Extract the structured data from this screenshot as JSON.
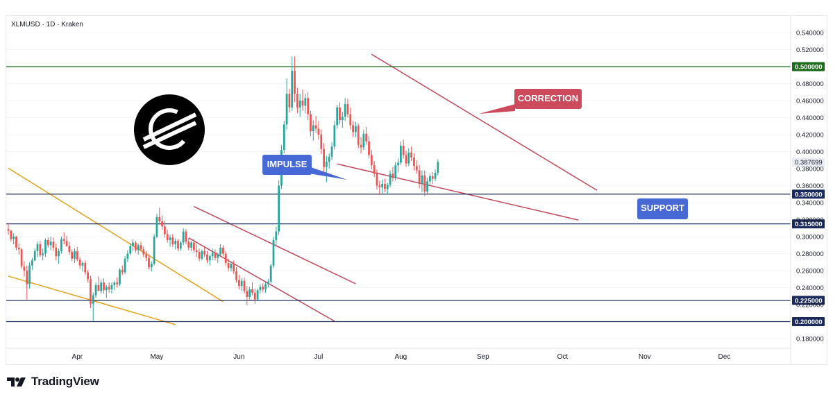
{
  "header": {
    "symbol_line": "XLMUSD · 1D · Kraken"
  },
  "brand": {
    "wordmark": "TradingView",
    "logo_icon": "tradingview-logo-icon"
  },
  "colors": {
    "up_candle": "#26a69a",
    "down_candle": "#ef5350",
    "channel_line": "#c0475a",
    "trend_line": "#e3a21b",
    "level_line": "#1b2a5c",
    "resistance_line": "#1e6b1e",
    "callout_red": "#cc4a5c",
    "callout_blue": "#4669d6"
  },
  "annotations": {
    "correction": "CORRECTION",
    "impulse": "IMPULSE",
    "support": "SUPPORT"
  },
  "chart_data": {
    "type": "candlestick",
    "title": "",
    "xlabel": "",
    "ylabel": "",
    "ylim": [
      0.17,
      0.55
    ],
    "x_tick_labels": [
      "Apr",
      "May",
      "Jun",
      "Jul",
      "Aug",
      "Sep",
      "Oct",
      "Nov",
      "Dec"
    ],
    "y_tick_labels": [
      "0.540000",
      "0.520000",
      "0.480000",
      "0.460000",
      "0.440000",
      "0.420000",
      "0.400000",
      "0.380000",
      "0.360000",
      "0.340000",
      "0.320000",
      "0.300000",
      "0.280000",
      "0.260000",
      "0.240000",
      "0.220000",
      "0.180000"
    ],
    "horizontal_levels": [
      {
        "label": "0.500000",
        "value": 0.5,
        "style": "resistance"
      },
      {
        "label": "0.350000",
        "value": 0.35,
        "style": "level"
      },
      {
        "label": "0.315000",
        "value": 0.315,
        "style": "level"
      },
      {
        "label": "0.225000",
        "value": 0.225,
        "style": "level"
      },
      {
        "label": "0.200000",
        "value": 0.2,
        "style": "level"
      }
    ],
    "last_price": {
      "label": "0.387699",
      "value": 0.3877
    },
    "trendlines": [
      {
        "name": "upper-trend-1",
        "style": "trend",
        "from": {
          "day": 0,
          "price": 0.3805
        },
        "to": {
          "day": 81,
          "price": 0.2235
        }
      },
      {
        "name": "lower-trend-1",
        "style": "trend",
        "from": {
          "day": 0,
          "price": 0.2535
        },
        "to": {
          "day": 63,
          "price": 0.1965
        }
      },
      {
        "name": "may-channel-top",
        "style": "channel",
        "from": {
          "day": 70,
          "price": 0.3355
        },
        "to": {
          "day": 131,
          "price": 0.2445
        }
      },
      {
        "name": "may-channel-bottom",
        "style": "channel",
        "from": {
          "day": 68,
          "price": 0.2985
        },
        "to": {
          "day": 123,
          "price": 0.2005
        }
      },
      {
        "name": "correction-top",
        "style": "channel",
        "from": {
          "day": 137,
          "price": 0.5145
        },
        "to": {
          "day": 222,
          "price": 0.3545
        }
      },
      {
        "name": "correction-bottom",
        "style": "channel",
        "from": {
          "day": 124,
          "price": 0.3855
        },
        "to": {
          "day": 215,
          "price": 0.3195
        }
      }
    ],
    "series": [
      {
        "name": "",
        "type": "candlestick",
        "values": [
          [
            0.309,
            0.316,
            0.302,
            0.307
          ],
          [
            0.307,
            0.308,
            0.294,
            0.297
          ],
          [
            0.297,
            0.304,
            0.291,
            0.3
          ],
          [
            0.3,
            0.301,
            0.284,
            0.287
          ],
          [
            0.287,
            0.292,
            0.279,
            0.285
          ],
          [
            0.285,
            0.287,
            0.262,
            0.265
          ],
          [
            0.265,
            0.271,
            0.253,
            0.26
          ],
          [
            0.26,
            0.266,
            0.226,
            0.244
          ],
          [
            0.244,
            0.27,
            0.239,
            0.266
          ],
          [
            0.266,
            0.275,
            0.261,
            0.272
          ],
          [
            0.272,
            0.286,
            0.271,
            0.283
          ],
          [
            0.283,
            0.294,
            0.276,
            0.291
          ],
          [
            0.291,
            0.295,
            0.276,
            0.278
          ],
          [
            0.278,
            0.286,
            0.272,
            0.28
          ],
          [
            0.28,
            0.298,
            0.276,
            0.296
          ],
          [
            0.296,
            0.299,
            0.287,
            0.29
          ],
          [
            0.29,
            0.3,
            0.284,
            0.294
          ],
          [
            0.294,
            0.299,
            0.283,
            0.287
          ],
          [
            0.287,
            0.292,
            0.272,
            0.277
          ],
          [
            0.277,
            0.286,
            0.268,
            0.283
          ],
          [
            0.283,
            0.3,
            0.28,
            0.297
          ],
          [
            0.297,
            0.305,
            0.291,
            0.295
          ],
          [
            0.295,
            0.301,
            0.288,
            0.289
          ],
          [
            0.289,
            0.294,
            0.279,
            0.282
          ],
          [
            0.282,
            0.285,
            0.271,
            0.274
          ],
          [
            0.274,
            0.286,
            0.269,
            0.283
          ],
          [
            0.283,
            0.288,
            0.271,
            0.273
          ],
          [
            0.273,
            0.276,
            0.262,
            0.266
          ],
          [
            0.266,
            0.271,
            0.259,
            0.269
          ],
          [
            0.269,
            0.272,
            0.255,
            0.258
          ],
          [
            0.258,
            0.261,
            0.246,
            0.25
          ],
          [
            0.25,
            0.254,
            0.216,
            0.221
          ],
          [
            0.221,
            0.234,
            0.201,
            0.231
          ],
          [
            0.231,
            0.246,
            0.228,
            0.243
          ],
          [
            0.243,
            0.253,
            0.239,
            0.236
          ],
          [
            0.236,
            0.249,
            0.233,
            0.246
          ],
          [
            0.246,
            0.251,
            0.233,
            0.237
          ],
          [
            0.237,
            0.243,
            0.228,
            0.241
          ],
          [
            0.241,
            0.246,
            0.234,
            0.238
          ],
          [
            0.238,
            0.246,
            0.233,
            0.243
          ],
          [
            0.243,
            0.248,
            0.237,
            0.246
          ],
          [
            0.246,
            0.252,
            0.24,
            0.244
          ],
          [
            0.244,
            0.263,
            0.242,
            0.261
          ],
          [
            0.261,
            0.266,
            0.255,
            0.258
          ],
          [
            0.258,
            0.277,
            0.256,
            0.274
          ],
          [
            0.274,
            0.284,
            0.27,
            0.28
          ],
          [
            0.28,
            0.292,
            0.278,
            0.289
          ],
          [
            0.289,
            0.297,
            0.283,
            0.293
          ],
          [
            0.293,
            0.295,
            0.281,
            0.284
          ],
          [
            0.284,
            0.292,
            0.279,
            0.29
          ],
          [
            0.29,
            0.294,
            0.283,
            0.285
          ],
          [
            0.285,
            0.288,
            0.276,
            0.279
          ],
          [
            0.279,
            0.283,
            0.271,
            0.275
          ],
          [
            0.275,
            0.279,
            0.261,
            0.264
          ],
          [
            0.264,
            0.271,
            0.259,
            0.268
          ],
          [
            0.268,
            0.303,
            0.266,
            0.3
          ],
          [
            0.3,
            0.327,
            0.298,
            0.323
          ],
          [
            0.323,
            0.334,
            0.314,
            0.318
          ],
          [
            0.318,
            0.325,
            0.308,
            0.312
          ],
          [
            0.312,
            0.319,
            0.299,
            0.303
          ],
          [
            0.303,
            0.308,
            0.293,
            0.296
          ],
          [
            0.296,
            0.302,
            0.288,
            0.299
          ],
          [
            0.299,
            0.303,
            0.288,
            0.291
          ],
          [
            0.291,
            0.298,
            0.285,
            0.295
          ],
          [
            0.295,
            0.297,
            0.283,
            0.286
          ],
          [
            0.286,
            0.295,
            0.283,
            0.293
          ],
          [
            0.293,
            0.31,
            0.29,
            0.306
          ],
          [
            0.306,
            0.309,
            0.291,
            0.294
          ],
          [
            0.294,
            0.298,
            0.284,
            0.287
          ],
          [
            0.287,
            0.295,
            0.283,
            0.293
          ],
          [
            0.293,
            0.297,
            0.281,
            0.284
          ],
          [
            0.284,
            0.291,
            0.276,
            0.282
          ],
          [
            0.282,
            0.286,
            0.271,
            0.274
          ],
          [
            0.274,
            0.285,
            0.272,
            0.283
          ],
          [
            0.283,
            0.289,
            0.276,
            0.279
          ],
          [
            0.279,
            0.283,
            0.269,
            0.272
          ],
          [
            0.272,
            0.279,
            0.266,
            0.277
          ],
          [
            0.277,
            0.286,
            0.272,
            0.281
          ],
          [
            0.281,
            0.285,
            0.272,
            0.275
          ],
          [
            0.275,
            0.281,
            0.269,
            0.279
          ],
          [
            0.279,
            0.291,
            0.276,
            0.287
          ],
          [
            0.287,
            0.29,
            0.277,
            0.28
          ],
          [
            0.28,
            0.283,
            0.266,
            0.269
          ],
          [
            0.269,
            0.274,
            0.259,
            0.263
          ],
          [
            0.263,
            0.271,
            0.259,
            0.268
          ],
          [
            0.268,
            0.272,
            0.256,
            0.259
          ],
          [
            0.259,
            0.264,
            0.246,
            0.249
          ],
          [
            0.249,
            0.255,
            0.238,
            0.242
          ],
          [
            0.242,
            0.251,
            0.236,
            0.248
          ],
          [
            0.248,
            0.252,
            0.233,
            0.236
          ],
          [
            0.236,
            0.242,
            0.219,
            0.229
          ],
          [
            0.229,
            0.241,
            0.226,
            0.238
          ],
          [
            0.238,
            0.246,
            0.231,
            0.234
          ],
          [
            0.234,
            0.239,
            0.221,
            0.226
          ],
          [
            0.226,
            0.239,
            0.224,
            0.237
          ],
          [
            0.237,
            0.244,
            0.233,
            0.241
          ],
          [
            0.241,
            0.245,
            0.235,
            0.238
          ],
          [
            0.238,
            0.246,
            0.234,
            0.244
          ],
          [
            0.244,
            0.25,
            0.24,
            0.247
          ],
          [
            0.247,
            0.268,
            0.245,
            0.266
          ],
          [
            0.266,
            0.3,
            0.263,
            0.296
          ],
          [
            0.296,
            0.312,
            0.29,
            0.306
          ],
          [
            0.306,
            0.366,
            0.302,
            0.36
          ],
          [
            0.36,
            0.408,
            0.356,
            0.402
          ],
          [
            0.402,
            0.436,
            0.398,
            0.432
          ],
          [
            0.432,
            0.486,
            0.426,
            0.468
          ],
          [
            0.468,
            0.474,
            0.446,
            0.452
          ],
          [
            0.452,
            0.512,
            0.448,
            0.495
          ],
          [
            0.495,
            0.512,
            0.458,
            0.468
          ],
          [
            0.468,
            0.475,
            0.445,
            0.452
          ],
          [
            0.452,
            0.468,
            0.441,
            0.46
          ],
          [
            0.46,
            0.473,
            0.448,
            0.454
          ],
          [
            0.454,
            0.468,
            0.445,
            0.463
          ],
          [
            0.463,
            0.47,
            0.437,
            0.444
          ],
          [
            0.444,
            0.448,
            0.418,
            0.424
          ],
          [
            0.424,
            0.437,
            0.413,
            0.431
          ],
          [
            0.431,
            0.442,
            0.422,
            0.427
          ],
          [
            0.427,
            0.436,
            0.414,
            0.42
          ],
          [
            0.42,
            0.426,
            0.397,
            0.403
          ],
          [
            0.403,
            0.41,
            0.376,
            0.382
          ],
          [
            0.382,
            0.395,
            0.364,
            0.388
          ],
          [
            0.388,
            0.398,
            0.38,
            0.394
          ],
          [
            0.394,
            0.411,
            0.39,
            0.406
          ],
          [
            0.406,
            0.436,
            0.403,
            0.431
          ],
          [
            0.431,
            0.455,
            0.427,
            0.452
          ],
          [
            0.452,
            0.458,
            0.432,
            0.437
          ],
          [
            0.437,
            0.447,
            0.428,
            0.441
          ],
          [
            0.441,
            0.463,
            0.436,
            0.456
          ],
          [
            0.456,
            0.462,
            0.44,
            0.444
          ],
          [
            0.444,
            0.452,
            0.426,
            0.431
          ],
          [
            0.431,
            0.436,
            0.417,
            0.423
          ],
          [
            0.423,
            0.435,
            0.417,
            0.43
          ],
          [
            0.43,
            0.433,
            0.404,
            0.408
          ],
          [
            0.408,
            0.417,
            0.398,
            0.405
          ],
          [
            0.405,
            0.426,
            0.402,
            0.421
          ],
          [
            0.421,
            0.429,
            0.408,
            0.412
          ],
          [
            0.412,
            0.418,
            0.392,
            0.396
          ],
          [
            0.396,
            0.402,
            0.379,
            0.384
          ],
          [
            0.384,
            0.389,
            0.37,
            0.374
          ],
          [
            0.374,
            0.379,
            0.355,
            0.36
          ],
          [
            0.36,
            0.366,
            0.349,
            0.358
          ],
          [
            0.358,
            0.367,
            0.351,
            0.362
          ],
          [
            0.362,
            0.368,
            0.352,
            0.356
          ],
          [
            0.356,
            0.363,
            0.35,
            0.361
          ],
          [
            0.361,
            0.378,
            0.358,
            0.374
          ],
          [
            0.374,
            0.382,
            0.365,
            0.369
          ],
          [
            0.369,
            0.388,
            0.366,
            0.384
          ],
          [
            0.384,
            0.392,
            0.376,
            0.387
          ],
          [
            0.387,
            0.412,
            0.384,
            0.407
          ],
          [
            0.407,
            0.414,
            0.392,
            0.396
          ],
          [
            0.396,
            0.401,
            0.382,
            0.386
          ],
          [
            0.386,
            0.404,
            0.383,
            0.399
          ],
          [
            0.399,
            0.406,
            0.389,
            0.393
          ],
          [
            0.393,
            0.398,
            0.378,
            0.383
          ],
          [
            0.383,
            0.39,
            0.374,
            0.378
          ],
          [
            0.378,
            0.384,
            0.357,
            0.362
          ],
          [
            0.362,
            0.378,
            0.352,
            0.372
          ],
          [
            0.372,
            0.378,
            0.348,
            0.353
          ],
          [
            0.353,
            0.369,
            0.349,
            0.365
          ],
          [
            0.365,
            0.374,
            0.36,
            0.371
          ],
          [
            0.371,
            0.376,
            0.362,
            0.368
          ],
          [
            0.368,
            0.379,
            0.365,
            0.375
          ],
          [
            0.375,
            0.391,
            0.372,
            0.388
          ]
        ]
      }
    ]
  }
}
